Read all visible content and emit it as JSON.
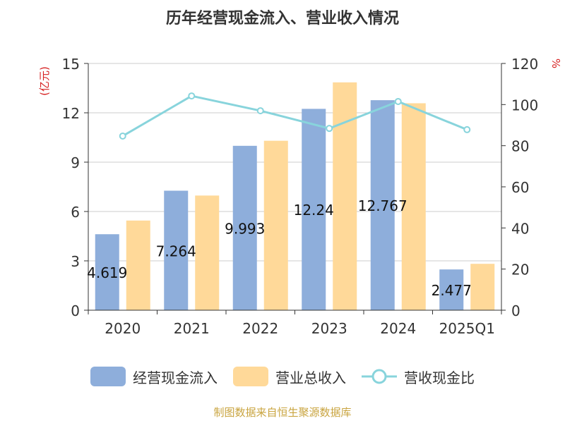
{
  "chart_data": {
    "type": "bar+line",
    "title": "历年经营现金流入、营业收入情况",
    "categories": [
      "2020",
      "2021",
      "2022",
      "2023",
      "2024",
      "2025Q1"
    ],
    "series": [
      {
        "name": "经营现金流入",
        "type": "bar",
        "axis": "left",
        "color": "#8eaedb",
        "values": [
          4.619,
          7.264,
          9.993,
          12.24,
          12.767,
          2.477
        ],
        "labels": [
          "4.619",
          "7.264",
          "9.993",
          "12.24",
          "12.767",
          "2.477"
        ]
      },
      {
        "name": "营业总收入",
        "type": "bar",
        "axis": "left",
        "color": "#ffd999",
        "values": [
          5.45,
          6.97,
          10.3,
          13.85,
          12.58,
          2.82
        ]
      },
      {
        "name": "营收现金比",
        "type": "line",
        "axis": "right",
        "color": "#88d4dc",
        "values": [
          84.7,
          104.2,
          97.0,
          88.4,
          101.5,
          87.8
        ]
      }
    ],
    "ylabel_left": "(亿元)",
    "ylabel_right": "%",
    "ylim_left": [
      0,
      15
    ],
    "yticks_left": [
      0,
      3,
      6,
      9,
      12,
      15
    ],
    "ylim_right": [
      0,
      120
    ],
    "yticks_right": [
      0,
      20,
      40,
      60,
      80,
      100,
      120
    ],
    "grid": true,
    "legend_position": "bottom"
  },
  "legend": [
    {
      "label": "经营现金流入",
      "kind": "bar",
      "color": "#8eaedb"
    },
    {
      "label": "营业总收入",
      "kind": "bar",
      "color": "#ffd999"
    },
    {
      "label": "营收现金比",
      "kind": "line",
      "color": "#88d4dc"
    }
  ],
  "source": "制图数据来自恒生聚源数据库"
}
